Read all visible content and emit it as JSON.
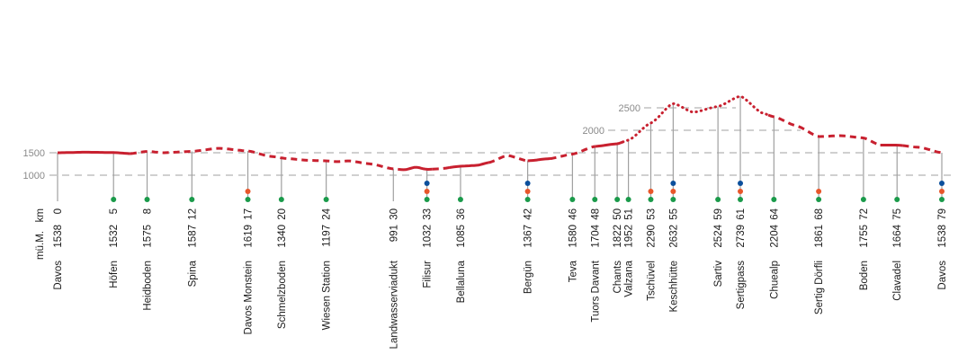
{
  "chart_data": {
    "type": "line",
    "title": "",
    "xlabel": "km",
    "ylabel": "m ü.M.",
    "axis_header": {
      "elev": "mü.M.",
      "km": "km"
    },
    "xlim": [
      0,
      79
    ],
    "yticks": [
      1000,
      1500,
      2000,
      2500
    ],
    "grid": true,
    "colors": {
      "line": "#c8202f",
      "green": "#1a9a4a",
      "orange": "#e8562a",
      "blue": "#0b4f9c",
      "grid": "#b5b5b5",
      "stem": "#a0a0a0"
    },
    "stations": [
      {
        "name": "Davos",
        "km": 0,
        "elev": 1538,
        "dots": []
      },
      {
        "name": "Höfen",
        "km": 5,
        "elev": 1532,
        "dots": [
          "green"
        ]
      },
      {
        "name": "Heidboden",
        "km": 8,
        "elev": 1575,
        "dots": [
          "green"
        ]
      },
      {
        "name": "Spina",
        "km": 12,
        "elev": 1587,
        "dots": [
          "green"
        ]
      },
      {
        "name": "Davos Monstein",
        "km": 17,
        "elev": 1619,
        "dots": [
          "orange",
          "green"
        ]
      },
      {
        "name": "Schmelzboden",
        "km": 20,
        "elev": 1340,
        "dots": [
          "green"
        ]
      },
      {
        "name": "Wiesen Station",
        "km": 24,
        "elev": 1197,
        "dots": [
          "green"
        ]
      },
      {
        "name": "Landwasserviadukt",
        "km": 30,
        "elev": 991,
        "dots": []
      },
      {
        "name": "Filisur",
        "km": 33,
        "elev": 1032,
        "dots": [
          "blue",
          "orange",
          "green"
        ]
      },
      {
        "name": "Bellaluna",
        "km": 36,
        "elev": 1085,
        "dots": [
          "green"
        ]
      },
      {
        "name": "Bergün",
        "km": 42,
        "elev": 1367,
        "dots": [
          "blue",
          "orange",
          "green"
        ]
      },
      {
        "name": "Teva",
        "km": 46,
        "elev": 1580,
        "dots": [
          "green"
        ]
      },
      {
        "name": "Tuors Davant",
        "km": 48,
        "elev": 1704,
        "dots": [
          "green"
        ]
      },
      {
        "name": "Chants",
        "km": 50,
        "elev": 1822,
        "dots": [
          "green"
        ]
      },
      {
        "name": "Valzana",
        "km": 51,
        "elev": 1952,
        "dots": [
          "green"
        ]
      },
      {
        "name": "Tschüvel",
        "km": 53,
        "elev": 2290,
        "dots": [
          "orange",
          "green"
        ]
      },
      {
        "name": "Keschhütte",
        "km": 55,
        "elev": 2632,
        "dots": [
          "blue",
          "orange",
          "green"
        ]
      },
      {
        "name": "Sartiv",
        "km": 59,
        "elev": 2524,
        "dots": [
          "green"
        ]
      },
      {
        "name": "Sertigpass",
        "km": 61,
        "elev": 2739,
        "dots": [
          "blue",
          "orange",
          "green"
        ]
      },
      {
        "name": "Chuealp",
        "km": 64,
        "elev": 2204,
        "dots": [
          "green"
        ]
      },
      {
        "name": "Sertig Dörfli",
        "km": 68,
        "elev": 1861,
        "dots": [
          "orange",
          "green"
        ]
      },
      {
        "name": "Boden",
        "km": 72,
        "elev": 1755,
        "dots": [
          "green"
        ]
      },
      {
        "name": "Clavadel",
        "km": 75,
        "elev": 1664,
        "dots": [
          "green"
        ]
      },
      {
        "name": "Davos",
        "km": 79,
        "elev": 1538,
        "dots": [
          "blue",
          "orange",
          "green"
        ]
      }
    ],
    "profile": [
      [
        0,
        1500
      ],
      [
        2.5,
        1512
      ],
      [
        5,
        1505
      ],
      [
        6.5,
        1480
      ],
      [
        8,
        1530
      ],
      [
        9.5,
        1500
      ],
      [
        12,
        1530
      ],
      [
        14.4,
        1600
      ],
      [
        17,
        1540
      ],
      [
        19,
        1420
      ],
      [
        20.5,
        1370
      ],
      [
        22.5,
        1330
      ],
      [
        24,
        1320
      ],
      [
        25,
        1300
      ],
      [
        26,
        1320
      ],
      [
        28,
        1250
      ],
      [
        30,
        1140
      ],
      [
        31,
        1120
      ],
      [
        32,
        1180
      ],
      [
        33,
        1130
      ],
      [
        34,
        1140
      ],
      [
        36,
        1200
      ],
      [
        37.5,
        1220
      ],
      [
        38.5,
        1280
      ],
      [
        40.2,
        1440
      ],
      [
        42,
        1320
      ],
      [
        44,
        1370
      ],
      [
        46,
        1470
      ],
      [
        48,
        1640
      ],
      [
        50,
        1700
      ],
      [
        51,
        1780
      ],
      [
        53,
        2160
      ],
      [
        55,
        2600
      ],
      [
        56.8,
        2400
      ],
      [
        59,
        2530
      ],
      [
        61,
        2760
      ],
      [
        63,
        2380
      ],
      [
        64,
        2300
      ],
      [
        66,
        2100
      ],
      [
        68,
        1860
      ],
      [
        70,
        1880
      ],
      [
        72,
        1830
      ],
      [
        73.5,
        1670
      ],
      [
        75,
        1670
      ],
      [
        77,
        1620
      ],
      [
        79,
        1500
      ]
    ],
    "segments": [
      {
        "from": 0,
        "to": 6.5,
        "style": "solid"
      },
      {
        "from": 6.5,
        "to": 30.5,
        "style": "dashed"
      },
      {
        "from": 30.5,
        "to": 33.5,
        "style": "solid"
      },
      {
        "from": 33.5,
        "to": 35,
        "style": "dashed"
      },
      {
        "from": 35,
        "to": 38.5,
        "style": "solid"
      },
      {
        "from": 38.5,
        "to": 42,
        "style": "dashed"
      },
      {
        "from": 42,
        "to": 44,
        "style": "solid"
      },
      {
        "from": 44,
        "to": 48,
        "style": "dashed"
      },
      {
        "from": 48,
        "to": 50.5,
        "style": "solid"
      },
      {
        "from": 50.5,
        "to": 63.5,
        "style": "dotted"
      },
      {
        "from": 63.5,
        "to": 73.5,
        "style": "dashed"
      },
      {
        "from": 73.5,
        "to": 75.5,
        "style": "solid"
      },
      {
        "from": 75.5,
        "to": 79,
        "style": "dashed"
      }
    ]
  }
}
